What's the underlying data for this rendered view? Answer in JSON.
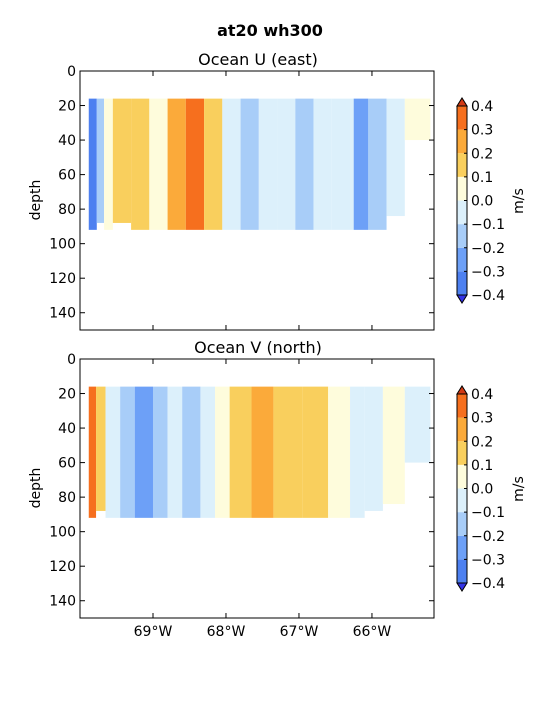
{
  "chart_data": {
    "suptitle": "at20 wh300",
    "type": "heatmap",
    "xlim": [
      -70.0,
      -65.15
    ],
    "xticks": [
      -69,
      -68,
      -67,
      -66
    ],
    "xtick_labels": [
      "69°W",
      "68°W",
      "67°W",
      "66°W"
    ],
    "shared_x": true,
    "colorbar": {
      "label": "m/s",
      "levels": [
        -0.4,
        -0.3,
        -0.2,
        -0.1,
        0.0,
        0.1,
        0.2,
        0.3,
        0.4
      ],
      "tick_labels": [
        "−0.4",
        "−0.3",
        "−0.2",
        "−0.1",
        "0.0",
        "0.1",
        "0.2",
        "0.3",
        "0.4"
      ],
      "colors": [
        "#3333e6",
        "#4d80f0",
        "#6da0f7",
        "#a8cdf8",
        "#dcf0fb",
        "#fefcdc",
        "#f9cf5d",
        "#fbaa3a",
        "#f66f1e",
        "#d33a15"
      ],
      "extend": "both"
    },
    "panels": [
      {
        "title": "Ocean U (east)",
        "ylabel": "depth",
        "ylim": [
          150,
          0
        ],
        "yticks": [
          0,
          20,
          40,
          60,
          80,
          100,
          120,
          140
        ],
        "ytick_labels": [
          "0",
          "20",
          "40",
          "60",
          "80",
          "100",
          "120",
          "140"
        ],
        "data_depth_range": [
          16,
          92
        ],
        "columns": [
          {
            "x0": -69.88,
            "x1": -69.77,
            "top": 16,
            "bottom": 92,
            "level": -0.35
          },
          {
            "x0": -69.77,
            "x1": -69.67,
            "top": 16,
            "bottom": 88,
            "level": -0.15
          },
          {
            "x0": -69.67,
            "x1": -69.55,
            "top": 16,
            "bottom": 92,
            "level": 0.05
          },
          {
            "x0": -69.55,
            "x1": -69.3,
            "top": 16,
            "bottom": 88,
            "level": 0.15
          },
          {
            "x0": -69.3,
            "x1": -69.05,
            "top": 16,
            "bottom": 92,
            "level": 0.15
          },
          {
            "x0": -69.05,
            "x1": -68.8,
            "top": 16,
            "bottom": 92,
            "level": 0.05
          },
          {
            "x0": -68.8,
            "x1": -68.55,
            "top": 16,
            "bottom": 92,
            "level": 0.25
          },
          {
            "x0": -68.55,
            "x1": -68.3,
            "top": 16,
            "bottom": 92,
            "level": 0.35
          },
          {
            "x0": -68.3,
            "x1": -68.05,
            "top": 16,
            "bottom": 92,
            "level": 0.15
          },
          {
            "x0": -68.05,
            "x1": -67.8,
            "top": 16,
            "bottom": 92,
            "level": -0.05
          },
          {
            "x0": -67.8,
            "x1": -67.55,
            "top": 16,
            "bottom": 92,
            "level": -0.15
          },
          {
            "x0": -67.55,
            "x1": -67.3,
            "top": 16,
            "bottom": 92,
            "level": -0.05
          },
          {
            "x0": -67.3,
            "x1": -67.05,
            "top": 16,
            "bottom": 92,
            "level": -0.05
          },
          {
            "x0": -67.05,
            "x1": -66.8,
            "top": 16,
            "bottom": 92,
            "level": -0.15
          },
          {
            "x0": -66.8,
            "x1": -66.55,
            "top": 16,
            "bottom": 92,
            "level": -0.05
          },
          {
            "x0": -66.55,
            "x1": -66.25,
            "top": 16,
            "bottom": 92,
            "level": -0.05
          },
          {
            "x0": -66.25,
            "x1": -66.05,
            "top": 16,
            "bottom": 92,
            "level": -0.25
          },
          {
            "x0": -66.05,
            "x1": -65.8,
            "top": 16,
            "bottom": 92,
            "level": -0.15
          },
          {
            "x0": -65.8,
            "x1": -65.55,
            "top": 16,
            "bottom": 84,
            "level": -0.05
          },
          {
            "x0": -65.55,
            "x1": -65.2,
            "top": 16,
            "bottom": 40,
            "level": 0.05
          }
        ]
      },
      {
        "title": "Ocean V (north)",
        "ylabel": "depth",
        "ylim": [
          150,
          0
        ],
        "yticks": [
          0,
          20,
          40,
          60,
          80,
          100,
          120,
          140
        ],
        "ytick_labels": [
          "0",
          "20",
          "40",
          "60",
          "80",
          "100",
          "120",
          "140"
        ],
        "data_depth_range": [
          16,
          92
        ],
        "columns": [
          {
            "x0": -69.88,
            "x1": -69.78,
            "top": 16,
            "bottom": 92,
            "level": 0.35
          },
          {
            "x0": -69.78,
            "x1": -69.65,
            "top": 16,
            "bottom": 88,
            "level": 0.15
          },
          {
            "x0": -69.65,
            "x1": -69.45,
            "top": 16,
            "bottom": 92,
            "level": -0.05
          },
          {
            "x0": -69.45,
            "x1": -69.25,
            "top": 16,
            "bottom": 92,
            "level": -0.15
          },
          {
            "x0": -69.25,
            "x1": -69.0,
            "top": 16,
            "bottom": 92,
            "level": -0.25
          },
          {
            "x0": -69.0,
            "x1": -68.8,
            "top": 16,
            "bottom": 92,
            "level": -0.15
          },
          {
            "x0": -68.8,
            "x1": -68.6,
            "top": 16,
            "bottom": 92,
            "level": -0.05
          },
          {
            "x0": -68.6,
            "x1": -68.35,
            "top": 16,
            "bottom": 92,
            "level": -0.15
          },
          {
            "x0": -68.35,
            "x1": -68.15,
            "top": 16,
            "bottom": 92,
            "level": -0.05
          },
          {
            "x0": -68.15,
            "x1": -67.95,
            "top": 16,
            "bottom": 92,
            "level": 0.05
          },
          {
            "x0": -67.95,
            "x1": -67.65,
            "top": 16,
            "bottom": 92,
            "level": 0.15
          },
          {
            "x0": -67.65,
            "x1": -67.35,
            "top": 16,
            "bottom": 92,
            "level": 0.25
          },
          {
            "x0": -67.35,
            "x1": -66.95,
            "top": 16,
            "bottom": 92,
            "level": 0.15
          },
          {
            "x0": -66.95,
            "x1": -66.6,
            "top": 16,
            "bottom": 92,
            "level": 0.15
          },
          {
            "x0": -66.6,
            "x1": -66.3,
            "top": 16,
            "bottom": 92,
            "level": 0.05
          },
          {
            "x0": -66.3,
            "x1": -66.1,
            "top": 16,
            "bottom": 92,
            "level": -0.05
          },
          {
            "x0": -66.1,
            "x1": -65.85,
            "top": 16,
            "bottom": 88,
            "level": -0.05
          },
          {
            "x0": -65.85,
            "x1": -65.55,
            "top": 16,
            "bottom": 84,
            "level": 0.05
          },
          {
            "x0": -65.55,
            "x1": -65.2,
            "top": 16,
            "bottom": 60,
            "level": -0.05
          }
        ]
      }
    ]
  }
}
